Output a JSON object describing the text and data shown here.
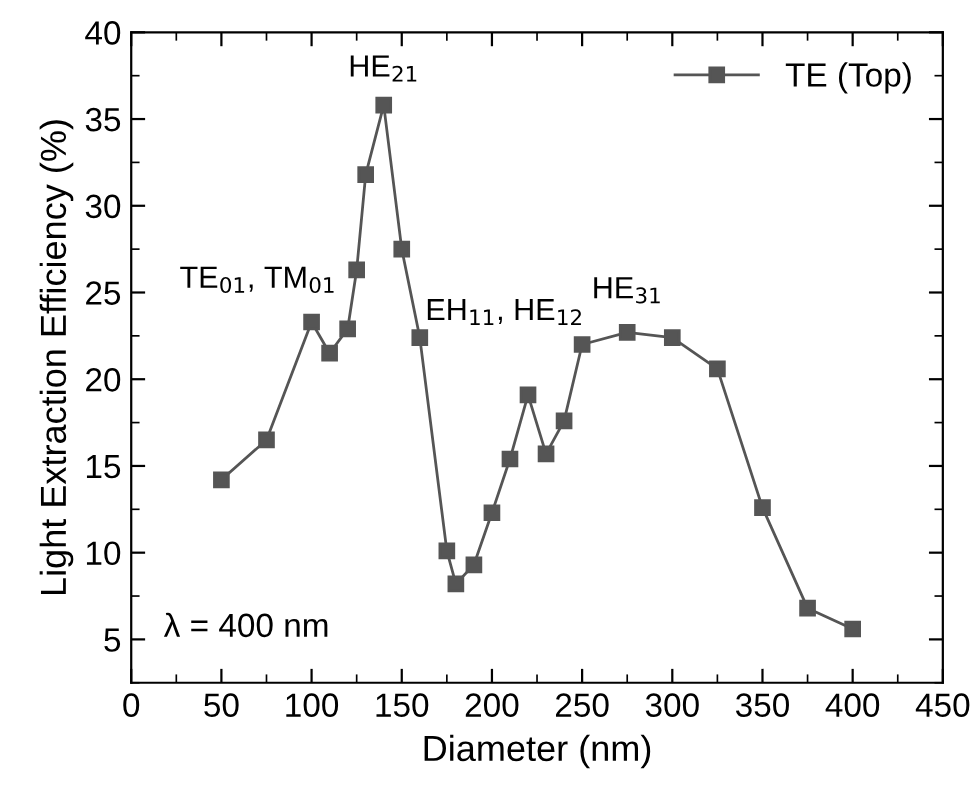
{
  "chart_data": {
    "type": "line",
    "xlabel": "Diameter (nm)",
    "ylabel": "Light Extraction Efficiency (%)",
    "x": [
      50,
      75,
      100,
      110,
      120,
      125,
      130,
      140,
      150,
      160,
      175,
      180,
      190,
      200,
      210,
      220,
      230,
      240,
      250,
      275,
      300,
      325,
      350,
      375,
      400
    ],
    "series": [
      {
        "name": "TE (Top)",
        "color": "#555555",
        "values": [
          14.2,
          16.5,
          23.3,
          21.5,
          22.9,
          26.3,
          31.8,
          35.8,
          27.5,
          22.4,
          10.1,
          8.2,
          9.3,
          12.3,
          15.4,
          19.1,
          15.7,
          17.6,
          22.0,
          22.7,
          22.4,
          20.6,
          12.6,
          6.8,
          5.6
        ]
      }
    ],
    "xlim": [
      0,
      450
    ],
    "ylim": [
      2.5,
      40
    ],
    "xticks": [
      0,
      50,
      100,
      150,
      200,
      250,
      300,
      350,
      400,
      450
    ],
    "yticks": [
      5,
      10,
      15,
      20,
      25,
      30,
      35,
      40
    ],
    "annotations": [
      {
        "text": "TE$_{01}$, TM$_{01}$",
        "x": 100,
        "y": 23.3
      },
      {
        "text": "HE$_{21}$",
        "x": 140,
        "y": 35.8
      },
      {
        "text": "EH$_{11}$, HE$_{12}$",
        "x": 160,
        "y": 22.4
      },
      {
        "text": "HE$_{31}$",
        "x": 275,
        "y": 22.7
      },
      "λ = 400 nm"
    ],
    "marker": "square",
    "line_style": "solid",
    "legend": "top right",
    "grid": false
  }
}
